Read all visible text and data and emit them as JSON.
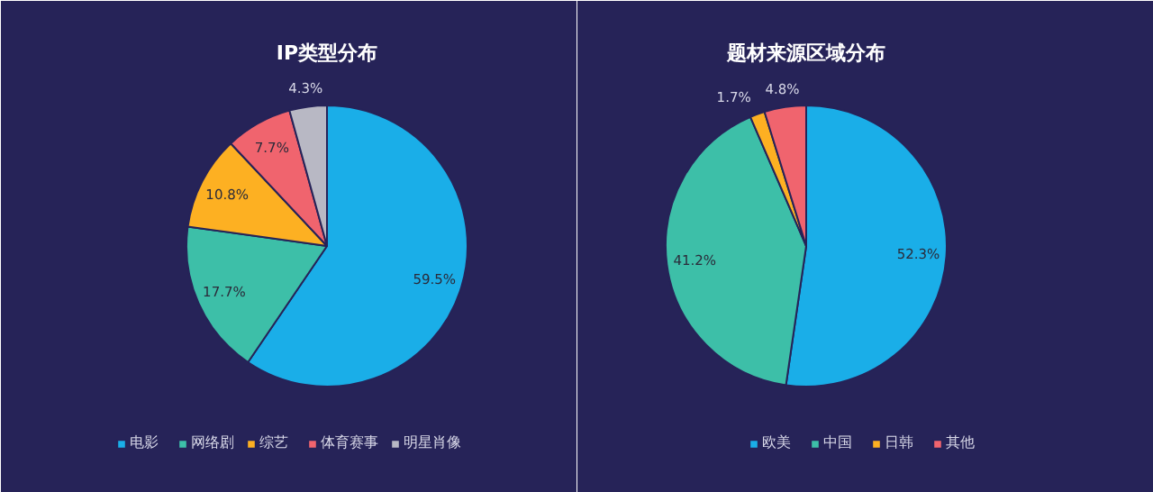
{
  "chart_data": [
    {
      "type": "pie",
      "title": "IP类型分布",
      "categories": [
        "电影",
        "网络剧",
        "综艺",
        "体育赛事",
        "明星肖像"
      ],
      "values": [
        59.5,
        17.7,
        10.8,
        7.7,
        4.3
      ],
      "colors": [
        "#1aaee8",
        "#3dbfa8",
        "#fdb022",
        "#f0646e",
        "#b8b8c4"
      ],
      "value_labels": [
        "59.5%",
        "17.7%",
        "10.8%",
        "7.7%",
        "4.3%"
      ],
      "legend": "bottom"
    },
    {
      "type": "pie",
      "title": "题材来源区域分布",
      "categories": [
        "欧美",
        "中国",
        "日韩",
        "其他"
      ],
      "values": [
        52.3,
        41.2,
        1.7,
        4.8
      ],
      "colors": [
        "#1aaee8",
        "#3dbfa8",
        "#fdb022",
        "#f0646e"
      ],
      "value_labels": [
        "52.3%",
        "41.2%",
        "1.7%",
        "4.8%"
      ],
      "legend": "bottom"
    }
  ]
}
